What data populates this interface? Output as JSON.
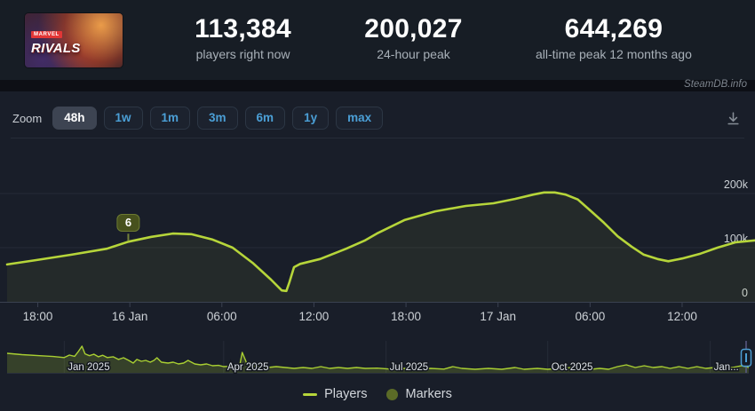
{
  "header": {
    "game": {
      "name": "Marvel Rivals",
      "logo_top": "MARVEL",
      "logo_main": "RIVALS"
    },
    "stats": [
      {
        "value": "113,384",
        "label": "players right now"
      },
      {
        "value": "200,027",
        "label": "24-hour peak"
      },
      {
        "value": "644,269",
        "label": "all-time peak 12 months ago"
      }
    ]
  },
  "watermark": "SteamDB.info",
  "toolbar": {
    "zoom_label": "Zoom",
    "ranges": [
      {
        "label": "48h",
        "active": true
      },
      {
        "label": "1w",
        "active": false
      },
      {
        "label": "1m",
        "active": false
      },
      {
        "label": "3m",
        "active": false
      },
      {
        "label": "6m",
        "active": false
      },
      {
        "label": "1y",
        "active": false
      },
      {
        "label": "max",
        "active": false
      }
    ]
  },
  "legend": [
    {
      "label": "Players",
      "swatch": "line",
      "color": "#b6d53a"
    },
    {
      "label": "Markers",
      "swatch": "circle",
      "color": "#5b6b27"
    }
  ],
  "colors": {
    "accent_green": "#b6d53a",
    "marker_olive": "#47511d",
    "button_blue": "#4b9fd6",
    "handle_blue": "#4c9ed3",
    "panel_bg": "#191e29",
    "header_bg": "#171d25"
  },
  "chart_data": [
    {
      "type": "area",
      "name": "players-48h",
      "series": [
        {
          "name": "Players",
          "color": "#b6d53a",
          "unit": "concurrent players (thousands)",
          "x_unit": "hours since 15 Jan 16:00",
          "points": [
            [
              0,
              69
            ],
            [
              1.9,
              77
            ],
            [
              4.2,
              87
            ],
            [
              6.5,
              98
            ],
            [
              7.9,
              111
            ],
            [
              9.4,
              120
            ],
            [
              10.8,
              126
            ],
            [
              12,
              125
            ],
            [
              13.4,
              115
            ],
            [
              14.7,
              100
            ],
            [
              16,
              72
            ],
            [
              17.2,
              41
            ],
            [
              17.9,
              21
            ],
            [
              18.2,
              20
            ],
            [
              18.4,
              36
            ],
            [
              18.7,
              64
            ],
            [
              19.1,
              70
            ],
            [
              20.4,
              79
            ],
            [
              22.1,
              98
            ],
            [
              23.3,
              113
            ],
            [
              24.1,
              126
            ],
            [
              25.9,
              151
            ],
            [
              27.9,
              167
            ],
            [
              29.9,
              177
            ],
            [
              31.7,
              182
            ],
            [
              33.1,
              190
            ],
            [
              34.3,
              198
            ],
            [
              35,
              202
            ],
            [
              35.7,
              202
            ],
            [
              36.4,
              198
            ],
            [
              37.2,
              189
            ],
            [
              38,
              169
            ],
            [
              38.9,
              146
            ],
            [
              39.8,
              121
            ],
            [
              40.7,
              102
            ],
            [
              41.5,
              87
            ],
            [
              42.4,
              79
            ],
            [
              43.1,
              75
            ],
            [
              44,
              80
            ],
            [
              45.2,
              89
            ],
            [
              46.3,
              100
            ],
            [
              47.5,
              110
            ],
            [
              48.75,
              113.4
            ]
          ]
        }
      ],
      "xlim": [
        0,
        48.75
      ],
      "ylim_thousands": [
        0,
        295
      ],
      "y_ticks": [
        {
          "v": 0,
          "label": "0"
        },
        {
          "v": 100,
          "label": "100k"
        },
        {
          "v": 200,
          "label": "200k"
        }
      ],
      "x_ticks": [
        {
          "t": 2,
          "label": "18:00"
        },
        {
          "t": 8,
          "label": "16 Jan"
        },
        {
          "t": 14,
          "label": "06:00"
        },
        {
          "t": 20,
          "label": "12:00"
        },
        {
          "t": 26,
          "label": "18:00"
        },
        {
          "t": 32,
          "label": "17 Jan"
        },
        {
          "t": 38,
          "label": "06:00"
        },
        {
          "t": 44,
          "label": "12:00"
        }
      ],
      "marker": {
        "label": "6",
        "t": 7.9,
        "v": 111
      },
      "grid": "horizontal",
      "legend_position": "bottom-center"
    },
    {
      "type": "area",
      "name": "navigator-full-history",
      "x_unit": "fraction of full history (Dec 2024 - Jan 2026)",
      "unit": "concurrent players (thousands, estimated)",
      "x_ticks": [
        {
          "f": 0.077,
          "label": "Jan 2025"
        },
        {
          "f": 0.292,
          "label": "Apr 2025"
        },
        {
          "f": 0.511,
          "label": "Jul 2025"
        },
        {
          "f": 0.729,
          "label": "Oct 2025"
        },
        {
          "f": 0.948,
          "label": "Jan..."
        }
      ],
      "selected_range": "48h window at right edge",
      "points": [
        [
          0,
          473
        ],
        [
          0.02,
          440
        ],
        [
          0.044,
          415
        ],
        [
          0.062,
          395
        ],
        [
          0.077,
          370
        ],
        [
          0.084,
          430
        ],
        [
          0.091,
          400
        ],
        [
          0.096,
          516
        ],
        [
          0.101,
          645
        ],
        [
          0.105,
          460
        ],
        [
          0.111,
          415
        ],
        [
          0.117,
          452
        ],
        [
          0.123,
          390
        ],
        [
          0.129,
          425
        ],
        [
          0.135,
          370
        ],
        [
          0.143,
          390
        ],
        [
          0.15,
          325
        ],
        [
          0.157,
          365
        ],
        [
          0.164,
          300
        ],
        [
          0.17,
          237
        ],
        [
          0.175,
          325
        ],
        [
          0.181,
          280
        ],
        [
          0.187,
          300
        ],
        [
          0.193,
          258
        ],
        [
          0.198,
          300
        ],
        [
          0.202,
          366
        ],
        [
          0.208,
          258
        ],
        [
          0.217,
          237
        ],
        [
          0.224,
          258
        ],
        [
          0.231,
          215
        ],
        [
          0.238,
          237
        ],
        [
          0.244,
          301
        ],
        [
          0.253,
          215
        ],
        [
          0.261,
          194
        ],
        [
          0.269,
          215
        ],
        [
          0.277,
          172
        ],
        [
          0.285,
          180
        ],
        [
          0.292,
          151
        ],
        [
          0.303,
          160
        ],
        [
          0.313,
          130
        ],
        [
          0.317,
          495
        ],
        [
          0.323,
          237
        ],
        [
          0.329,
          172
        ],
        [
          0.339,
          151
        ],
        [
          0.351,
          130
        ],
        [
          0.363,
          150
        ],
        [
          0.375,
          130
        ],
        [
          0.387,
          108
        ],
        [
          0.399,
          130
        ],
        [
          0.411,
          108
        ],
        [
          0.423,
          150
        ],
        [
          0.435,
          108
        ],
        [
          0.447,
          130
        ],
        [
          0.459,
          108
        ],
        [
          0.471,
          130
        ],
        [
          0.483,
          108
        ],
        [
          0.499,
          115
        ],
        [
          0.517,
          90
        ],
        [
          0.535,
          108
        ],
        [
          0.553,
          86
        ],
        [
          0.571,
          108
        ],
        [
          0.589,
          90
        ],
        [
          0.601,
          150
        ],
        [
          0.613,
          108
        ],
        [
          0.631,
          86
        ],
        [
          0.649,
          108
        ],
        [
          0.667,
          86
        ],
        [
          0.685,
          130
        ],
        [
          0.697,
          86
        ],
        [
          0.715,
          108
        ],
        [
          0.729,
          86
        ],
        [
          0.745,
          108
        ],
        [
          0.763,
          130
        ],
        [
          0.775,
          100
        ],
        [
          0.787,
          86
        ],
        [
          0.799,
          108
        ],
        [
          0.811,
          86
        ],
        [
          0.823,
          150
        ],
        [
          0.835,
          194
        ],
        [
          0.847,
          130
        ],
        [
          0.859,
          172
        ],
        [
          0.871,
          130
        ],
        [
          0.883,
          150
        ],
        [
          0.894,
          108
        ],
        [
          0.906,
          150
        ],
        [
          0.918,
          108
        ],
        [
          0.93,
          150
        ],
        [
          0.942,
          108
        ],
        [
          0.954,
          130
        ],
        [
          0.966,
          108
        ],
        [
          0.978,
          130
        ],
        [
          0.99,
          172
        ],
        [
          1,
          130
        ]
      ]
    }
  ]
}
